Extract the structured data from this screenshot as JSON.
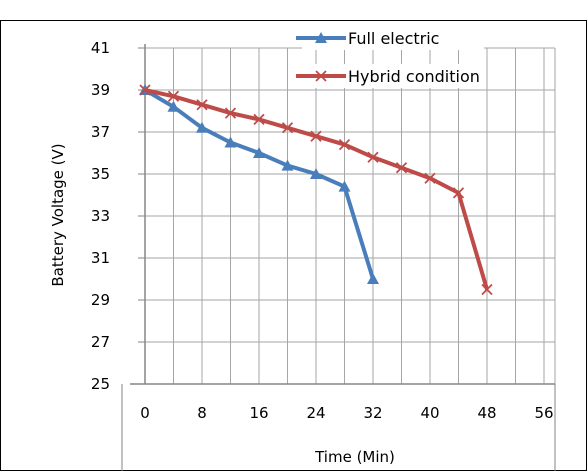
{
  "chart_data": {
    "type": "line",
    "title": "",
    "xlabel": "Time (Min)",
    "ylabel": "Battery Voltage (V)",
    "x_ticks": [
      "0",
      "8",
      "16",
      "24",
      "32",
      "40",
      "48",
      "56"
    ],
    "y_ticks": [
      "25",
      "27",
      "29",
      "31",
      "33",
      "35",
      "37",
      "39",
      "41"
    ],
    "xlim": [
      0,
      56
    ],
    "ylim": [
      25,
      41
    ],
    "grid": true,
    "legend_position": "top-right",
    "series": [
      {
        "name": "Full electric",
        "color": "#4a7ebb",
        "marker": "triangle",
        "x": [
          0,
          4,
          8,
          12,
          16,
          20,
          24,
          28,
          32
        ],
        "y": [
          39.0,
          38.2,
          37.2,
          36.5,
          36.0,
          35.4,
          35.0,
          34.4,
          30.0
        ]
      },
      {
        "name": "Hybrid condition",
        "color": "#be4b48",
        "marker": "x",
        "x": [
          0,
          4,
          8,
          12,
          16,
          20,
          24,
          28,
          32,
          36,
          40,
          44,
          48
        ],
        "y": [
          39.0,
          38.7,
          38.3,
          37.9,
          37.6,
          37.2,
          36.8,
          36.4,
          35.8,
          35.3,
          34.8,
          34.1,
          29.5
        ]
      }
    ]
  }
}
